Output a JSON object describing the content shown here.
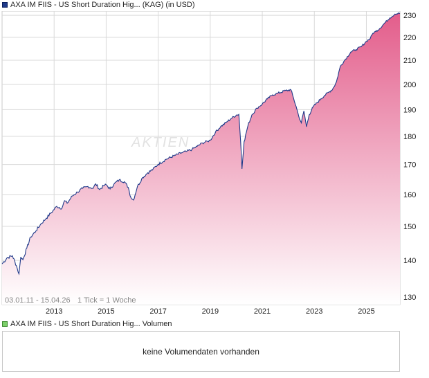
{
  "header": {
    "title": "AXA IM FIIS - US Short Duration Hig... (KAG) (in USD)",
    "series_color": "#1f3a8a"
  },
  "volume_header": {
    "title": "AXA IM FIIS - US Short Duration Hig... Volumen",
    "series_color": "#7ccf6a"
  },
  "volume_panel": {
    "message": "keine Volumendaten vorhanden"
  },
  "footer": {
    "range": "03.01.11 - 15.04.26",
    "tick": "1 Tick = 1 Woche"
  },
  "watermark": "AKTIEN",
  "colors": {
    "line": "#1f3a8a",
    "fill_top": "#e35d8b",
    "fill_bottom": "#ffffff",
    "grid": "#d9d9d9"
  },
  "chart_data": {
    "type": "area",
    "y_scale": "log",
    "ylim": [
      128,
      232
    ],
    "yticks": [
      130,
      140,
      150,
      160,
      170,
      180,
      190,
      200,
      210,
      220,
      230
    ],
    "xlim": [
      2011.0,
      2026.29
    ],
    "xticks": [
      2013,
      2015,
      2017,
      2019,
      2021,
      2023,
      2025
    ],
    "grid": true,
    "series": [
      {
        "x": [
          2011.0,
          2011.2,
          2011.4,
          2011.55,
          2011.65,
          2011.72,
          2011.8,
          2011.95,
          2012.1,
          2012.3,
          2012.5,
          2012.7,
          2012.9,
          2013.1,
          2013.3,
          2013.4,
          2013.5,
          2013.7,
          2013.9,
          2014.1,
          2014.3,
          2014.5,
          2014.6,
          2014.75,
          2014.9,
          2015.0,
          2015.15,
          2015.3,
          2015.5,
          2015.7,
          2015.85,
          2015.95,
          2016.05,
          2016.2,
          2016.4,
          2016.6,
          2016.8,
          2017.0,
          2017.3,
          2017.6,
          2017.9,
          2018.1,
          2018.3,
          2018.5,
          2018.7,
          2018.9,
          2019.0,
          2019.2,
          2019.4,
          2019.6,
          2019.8,
          2020.0,
          2020.1,
          2020.17,
          2020.22,
          2020.3,
          2020.45,
          2020.6,
          2020.8,
          2021.0,
          2021.2,
          2021.4,
          2021.6,
          2021.9,
          2022.1,
          2022.2,
          2022.3,
          2022.4,
          2022.5,
          2022.6,
          2022.7,
          2022.8,
          2022.95,
          2023.1,
          2023.25,
          2023.4,
          2023.55,
          2023.7,
          2023.85,
          2024.0,
          2024.2,
          2024.4,
          2024.6,
          2024.8,
          2025.0,
          2025.15,
          2025.25,
          2025.35,
          2025.5,
          2025.7,
          2025.9,
          2026.1,
          2026.29
        ],
        "values": [
          139.0,
          140.8,
          141.3,
          138.5,
          136.2,
          141.0,
          140.2,
          143.5,
          146.8,
          148.6,
          150.8,
          152.5,
          154.3,
          156.2,
          155.6,
          158.0,
          157.2,
          159.5,
          160.8,
          162.0,
          162.6,
          162.0,
          163.5,
          161.6,
          162.8,
          163.2,
          161.8,
          163.4,
          164.8,
          164.2,
          162.3,
          159.0,
          158.2,
          162.6,
          165.6,
          167.2,
          168.4,
          170.1,
          171.8,
          173.0,
          174.1,
          174.6,
          175.3,
          176.4,
          177.6,
          178.2,
          178.6,
          181.5,
          183.6,
          185.0,
          186.6,
          187.9,
          188.2,
          178.0,
          168.5,
          178.0,
          184.0,
          188.0,
          190.6,
          192.2,
          194.2,
          195.8,
          196.4,
          197.5,
          197.8,
          194.5,
          191.2,
          187.5,
          185.0,
          189.5,
          183.5,
          188.0,
          191.0,
          192.6,
          194.2,
          195.6,
          196.8,
          198.0,
          201.0,
          207.5,
          210.5,
          213.5,
          214.6,
          215.8,
          218.2,
          219.5,
          221.8,
          222.6,
          223.8,
          226.4,
          228.8,
          230.6,
          231.0
        ]
      }
    ]
  }
}
